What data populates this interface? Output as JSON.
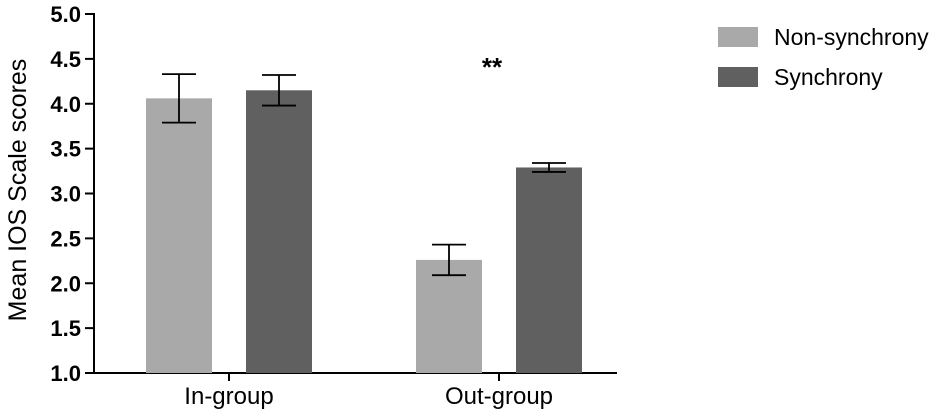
{
  "chart_data": {
    "type": "bar",
    "title": "",
    "xlabel": "",
    "ylabel": "Mean IOS Scale scores",
    "ylim": [
      1.0,
      5.0
    ],
    "yticks": [
      "1.0",
      "1.5",
      "2.0",
      "2.5",
      "3.0",
      "3.5",
      "4.0",
      "4.5",
      "5.0"
    ],
    "categories": [
      "In-group",
      "Out-group"
    ],
    "series": [
      {
        "name": "Non-synchrony",
        "color": "#a9a9a9",
        "values": [
          4.06,
          2.26
        ],
        "error": [
          0.27,
          0.17
        ]
      },
      {
        "name": "Synchrony",
        "color": "#606060",
        "values": [
          4.15,
          3.29
        ],
        "error": [
          0.17,
          0.05
        ]
      }
    ],
    "annotations": [
      {
        "text": "**",
        "category": "Out-group",
        "y": 4.5
      }
    ],
    "legend_position": "top-right",
    "grid": false
  }
}
